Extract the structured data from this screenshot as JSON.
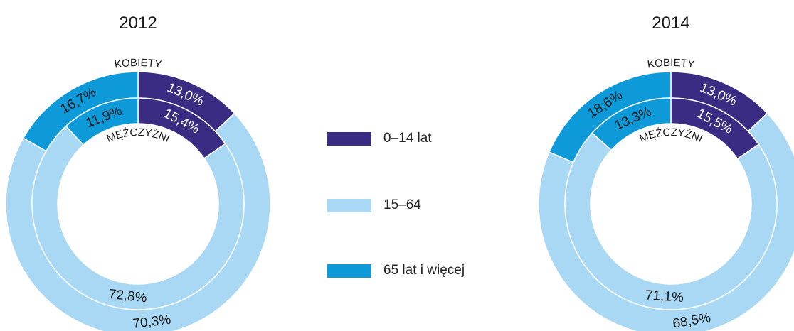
{
  "colors": {
    "age_0_14": "#3a2c82",
    "age_15_64": "#a9d8f4",
    "age_65_plus": "#0e9ad8",
    "text_dark": "#1a1a1a",
    "text_light": "#ffffff"
  },
  "ring_labels": {
    "outer": "KOBIETY",
    "inner": "MĘŻCZYŹNI"
  },
  "legend": [
    {
      "label": "0–14 lat",
      "color": "#3a2c82"
    },
    {
      "label": "15–64",
      "color": "#a9d8f4"
    },
    {
      "label": "65 lat i więcej",
      "color": "#0e9ad8"
    }
  ],
  "chart_data": [
    {
      "type": "pie",
      "title": "2012",
      "categories": [
        "0–14 lat",
        "15–64",
        "65 lat i więcej"
      ],
      "series": [
        {
          "name": "KOBIETY",
          "values": [
            13.0,
            70.3,
            16.7
          ],
          "labels": [
            "13,0%",
            "70,3%",
            "16,7%"
          ]
        },
        {
          "name": "MĘŻCZYŹNI",
          "values": [
            15.4,
            72.8,
            11.9
          ],
          "labels": [
            "15,4%",
            "72,8%",
            "11,9%"
          ]
        }
      ]
    },
    {
      "type": "pie",
      "title": "2014",
      "categories": [
        "0–14 lat",
        "15–64",
        "65 lat i więcej"
      ],
      "series": [
        {
          "name": "KOBIETY",
          "values": [
            13.0,
            68.5,
            18.6
          ],
          "labels": [
            "13,0%",
            "68,5%",
            "18,6%"
          ]
        },
        {
          "name": "MĘŻCZYŹNI",
          "values": [
            15.5,
            71.1,
            13.3
          ],
          "labels": [
            "15,5%",
            "71,1%",
            "13,3%"
          ]
        }
      ]
    }
  ]
}
